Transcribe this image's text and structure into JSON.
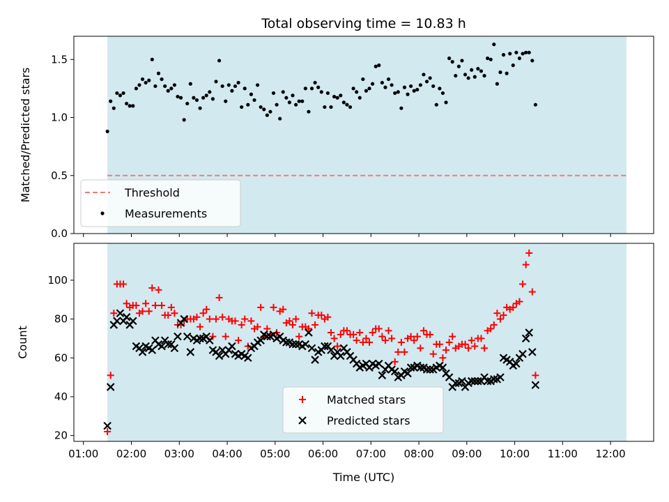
{
  "title": "Total observing time = 10.83 h",
  "colors": {
    "band": "#d3e9f0",
    "threshold": "#f07a7a",
    "matched": "#ff0000",
    "predicted": "#000000"
  },
  "chart_data": [
    {
      "type": "scatter",
      "ylabel": "Matched/Predicted stars",
      "xlim": [
        "00:48",
        "12:54"
      ],
      "ylim": [
        0,
        1.7
      ],
      "yticks": [
        "0.0",
        "0.5",
        "1.0",
        "1.5"
      ],
      "observing_window": [
        "01:30",
        "12:20"
      ],
      "threshold": {
        "name": "Threshold",
        "value": 0.5
      },
      "legend": {
        "position": "lower-left",
        "entries": [
          "Threshold",
          "Measurements"
        ]
      },
      "series": [
        {
          "name": "Measurements",
          "x_start": "01:30",
          "x_step_minutes": 4,
          "values": [
            0.88,
            1.14,
            1.08,
            1.21,
            1.19,
            1.21,
            1.12,
            1.1,
            1.1,
            1.25,
            1.28,
            1.33,
            1.3,
            1.32,
            1.5,
            1.27,
            1.38,
            1.33,
            1.27,
            1.23,
            1.25,
            1.28,
            1.18,
            1.17,
            0.98,
            1.12,
            1.29,
            1.17,
            1.15,
            1.08,
            1.17,
            1.19,
            1.22,
            1.16,
            1.31,
            1.49,
            1.27,
            1.14,
            1.28,
            1.23,
            1.27,
            1.3,
            1.09,
            1.25,
            1.11,
            1.2,
            1.15,
            1.28,
            1.09,
            1.07,
            1.02,
            1.05,
            1.21,
            1.11,
            0.99,
            1.22,
            1.17,
            1.13,
            1.19,
            1.11,
            1.14,
            1.14,
            1.25,
            1.05,
            1.25,
            1.3,
            1.26,
            1.22,
            1.09,
            1.21,
            1.09,
            1.18,
            1.17,
            1.19,
            1.13,
            1.11,
            1.09,
            1.25,
            1.22,
            1.17,
            1.33,
            1.23,
            1.25,
            1.29,
            1.44,
            1.45,
            1.3,
            1.26,
            1.33,
            1.28,
            1.21,
            1.22,
            1.08,
            1.26,
            1.2,
            1.27,
            1.23,
            1.24,
            1.28,
            1.37,
            1.31,
            1.34,
            1.27,
            1.11,
            1.25,
            1.21,
            1.13,
            1.51,
            1.48,
            1.36,
            1.44,
            1.49,
            1.37,
            1.34,
            1.41,
            1.35,
            1.42,
            1.4,
            1.36,
            1.51,
            1.5,
            1.63,
            1.29,
            1.39,
            1.54,
            1.38,
            1.55,
            1.45,
            1.56,
            1.51,
            1.55,
            1.56,
            1.56,
            1.49,
            1.11
          ]
        }
      ]
    },
    {
      "type": "scatter",
      "xlabel": "Time (UTC)",
      "ylabel": "Count",
      "xlim": [
        "00:48",
        "12:54"
      ],
      "ylim": [
        17,
        119
      ],
      "xticks": [
        "01:00",
        "02:00",
        "03:00",
        "04:00",
        "05:00",
        "06:00",
        "07:00",
        "08:00",
        "09:00",
        "10:00",
        "11:00",
        "12:00"
      ],
      "yticks": [
        "20",
        "40",
        "60",
        "80",
        "100"
      ],
      "observing_window": [
        "01:30",
        "12:20"
      ],
      "legend": {
        "position": "lower-center",
        "entries": [
          "Matched stars",
          "Predicted stars"
        ]
      },
      "series": [
        {
          "name": "Matched stars",
          "marker": "plus",
          "x_start": "01:30",
          "x_step_minutes": 4,
          "values": [
            22,
            51,
            83,
            98,
            98,
            98,
            88,
            86,
            87,
            87,
            83,
            84,
            88,
            84,
            96,
            87,
            95,
            87,
            82,
            82,
            86,
            83,
            77,
            77,
            79,
            80,
            80,
            80,
            81,
            76,
            83,
            85,
            80,
            71,
            80,
            91,
            81,
            71,
            80,
            79,
            79,
            69,
            77,
            80,
            66,
            79,
            75,
            76,
            86,
            71,
            75,
            72,
            86,
            73,
            84,
            85,
            78,
            79,
            77,
            80,
            71,
            76,
            76,
            75,
            83,
            77,
            82,
            82,
            80,
            81,
            73,
            70,
            66,
            72,
            74,
            74,
            72,
            72,
            69,
            73,
            68,
            70,
            68,
            73,
            75,
            75,
            71,
            69,
            74,
            70,
            58,
            63,
            68,
            63,
            70,
            71,
            69,
            71,
            65,
            74,
            72,
            72,
            62,
            67,
            67,
            60,
            64,
            68,
            71,
            65,
            66,
            67,
            67,
            65,
            69,
            66,
            70,
            70,
            65,
            74,
            75,
            77,
            83,
            80,
            82,
            86,
            85,
            86,
            88,
            89,
            98,
            108,
            114,
            94,
            51
          ]
        },
        {
          "name": "Predicted stars",
          "marker": "x",
          "x_start": "01:30",
          "x_step_minutes": 4,
          "values": [
            25,
            45,
            77,
            79,
            83,
            79,
            81,
            77,
            79,
            66,
            65,
            63,
            66,
            65,
            64,
            69,
            67,
            66,
            69,
            67,
            67,
            65,
            71,
            78,
            80,
            71,
            63,
            70,
            69,
            70,
            70,
            71,
            69,
            64,
            63,
            61,
            64,
            62,
            64,
            66,
            62,
            61,
            62,
            61,
            60,
            65,
            66,
            68,
            69,
            72,
            71,
            71,
            72,
            70,
            71,
            69,
            68,
            68,
            67,
            67,
            67,
            66,
            67,
            73,
            65,
            59,
            63,
            64,
            66,
            66,
            64,
            61,
            63,
            61,
            65,
            63,
            61,
            59,
            57,
            55,
            56,
            57,
            55,
            57,
            56,
            57,
            51,
            54,
            56,
            54,
            53,
            50,
            51,
            53,
            52,
            55,
            55,
            56,
            55,
            55,
            54,
            54,
            54,
            55,
            56,
            55,
            52,
            50,
            45,
            47,
            47,
            48,
            45,
            47,
            48,
            48,
            48,
            48,
            50,
            48,
            48,
            49,
            49,
            50,
            60,
            59,
            58,
            56,
            57,
            60,
            62,
            70,
            73,
            63,
            46
          ]
        }
      ]
    }
  ]
}
